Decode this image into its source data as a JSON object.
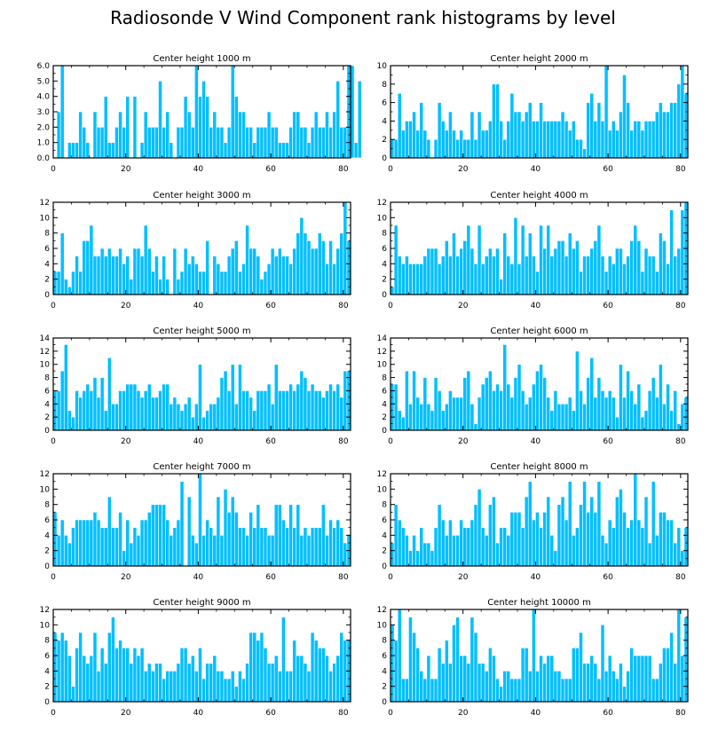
{
  "page_title": "Radiosonde V Wind Component rank histograms by level",
  "colors": {
    "bar": "#00BFFF",
    "frame": "#000000"
  },
  "chart_data": [
    {
      "type": "bar",
      "title": "Center height 1000 m",
      "xlim": [
        0,
        82
      ],
      "x_ticks": [
        0,
        20,
        40,
        60,
        80
      ],
      "ylim": [
        0,
        6
      ],
      "y_ticks": [
        0,
        1,
        2,
        3,
        4,
        5,
        6
      ],
      "y_tick_labels": [
        "0.0",
        "1.0",
        "2.0",
        "3.0",
        "4.0",
        "5.0",
        "6.0"
      ],
      "values": [
        0,
        3,
        6,
        0,
        1,
        1,
        1,
        3,
        2,
        1,
        0,
        3,
        2,
        2,
        4,
        1,
        1,
        2,
        3,
        2,
        4,
        0,
        4,
        0,
        1,
        3,
        2,
        2,
        2,
        5,
        2,
        3,
        1,
        0,
        2,
        2,
        4,
        3,
        2,
        6,
        4,
        5,
        4,
        2,
        3,
        2,
        2,
        1,
        2,
        6,
        4,
        3,
        3,
        2,
        2,
        1,
        2,
        2,
        2,
        3,
        2,
        2,
        1,
        1,
        1,
        2,
        3,
        3,
        2,
        2,
        1,
        2,
        3,
        2,
        2,
        3,
        2,
        3,
        5,
        2,
        2,
        6,
        6,
        1,
        5
      ]
    },
    {
      "type": "bar",
      "title": "Center height 2000 m",
      "xlim": [
        0,
        82
      ],
      "x_ticks": [
        0,
        20,
        40,
        60,
        80
      ],
      "ylim": [
        0,
        10
      ],
      "y_ticks": [
        0,
        2,
        4,
        6,
        8,
        10
      ],
      "y_tick_labels": [
        "0",
        "2",
        "4",
        "6",
        "8",
        "10"
      ],
      "values": [
        2,
        2,
        7,
        3,
        4,
        4,
        5,
        3,
        6,
        3,
        2,
        0,
        2,
        6,
        4,
        3,
        5,
        3,
        2,
        3,
        2,
        2,
        5,
        2,
        5,
        3,
        3,
        4,
        8,
        8,
        4,
        2,
        4,
        7,
        5,
        5,
        4,
        5,
        6,
        4,
        4,
        6,
        4,
        4,
        4,
        4,
        4,
        5,
        4,
        3,
        4,
        2,
        2,
        1,
        6,
        7,
        4,
        6,
        4,
        10,
        3,
        4,
        3,
        5,
        9,
        6,
        3,
        4,
        4,
        3,
        4,
        4,
        4,
        5,
        6,
        5,
        5,
        6,
        6,
        8,
        10,
        7
      ]
    },
    {
      "type": "bar",
      "title": "Center height 3000 m",
      "xlim": [
        0,
        82
      ],
      "x_ticks": [
        0,
        20,
        40,
        60,
        80
      ],
      "ylim": [
        0,
        12
      ],
      "y_ticks": [
        0,
        2,
        4,
        6,
        8,
        10,
        12
      ],
      "y_tick_labels": [
        "0",
        "2",
        "4",
        "6",
        "8",
        "10",
        "12"
      ],
      "values": [
        3,
        3,
        8,
        2,
        1,
        3,
        5,
        3,
        7,
        7,
        9,
        5,
        5,
        6,
        5,
        6,
        5,
        5,
        6,
        4,
        5,
        2,
        6,
        6,
        5,
        9,
        6,
        3,
        5,
        2,
        5,
        2,
        0,
        6,
        2,
        3,
        6,
        4,
        5,
        4,
        3,
        3,
        7,
        0,
        5,
        4,
        3,
        3,
        5,
        6,
        7,
        3,
        4,
        9,
        6,
        6,
        5,
        2,
        3,
        4,
        6,
        5,
        6,
        5,
        5,
        4,
        6,
        8,
        10,
        8,
        7,
        6,
        6,
        8,
        7,
        4,
        7,
        4,
        6,
        8,
        12,
        7
      ]
    },
    {
      "type": "bar",
      "title": "Center height 4000 m",
      "xlim": [
        0,
        82
      ],
      "x_ticks": [
        0,
        20,
        40,
        60,
        80
      ],
      "ylim": [
        0,
        12
      ],
      "y_ticks": [
        0,
        2,
        4,
        6,
        8,
        10,
        12
      ],
      "y_tick_labels": [
        "0",
        "2",
        "4",
        "6",
        "8",
        "10",
        "12"
      ],
      "values": [
        1,
        9,
        5,
        4,
        5,
        4,
        4,
        4,
        4,
        5,
        6,
        6,
        6,
        4,
        5,
        7,
        5,
        8,
        5,
        6,
        7,
        9,
        6,
        4,
        9,
        4,
        5,
        6,
        5,
        6,
        2,
        8,
        5,
        4,
        10,
        4,
        9,
        5,
        8,
        5,
        3,
        9,
        6,
        9,
        5,
        6,
        7,
        7,
        5,
        8,
        6,
        7,
        3,
        5,
        5,
        6,
        7,
        9,
        5,
        3,
        5,
        4,
        6,
        6,
        4,
        5,
        7,
        9,
        7,
        3,
        6,
        5,
        5,
        3,
        8,
        7,
        4,
        11,
        5,
        6,
        11,
        12
      ]
    },
    {
      "type": "bar",
      "title": "Center height 5000 m",
      "xlim": [
        0,
        82
      ],
      "x_ticks": [
        0,
        20,
        40,
        60,
        80
      ],
      "ylim": [
        0,
        14
      ],
      "y_ticks": [
        0,
        2,
        4,
        6,
        8,
        10,
        12,
        14
      ],
      "y_tick_labels": [
        "0",
        "2",
        "4",
        "6",
        "8",
        "10",
        "12",
        "14"
      ],
      "values": [
        6,
        6,
        9,
        13,
        3,
        2,
        6,
        5,
        6,
        7,
        6,
        8,
        5,
        8,
        3,
        11,
        4,
        4,
        6,
        6,
        7,
        7,
        7,
        6,
        5,
        6,
        7,
        5,
        5,
        6,
        7,
        7,
        4,
        5,
        4,
        3,
        4,
        5,
        2,
        4,
        10,
        2,
        3,
        4,
        4,
        5,
        8,
        9,
        6,
        10,
        4,
        10,
        6,
        6,
        5,
        3,
        6,
        6,
        6,
        7,
        4,
        10,
        6,
        6,
        6,
        7,
        6,
        7,
        9,
        8,
        6,
        7,
        6,
        6,
        5,
        6,
        7,
        6,
        7,
        5,
        9,
        9
      ]
    },
    {
      "type": "bar",
      "title": "Center height 6000 m",
      "xlim": [
        0,
        82
      ],
      "x_ticks": [
        0,
        20,
        40,
        60,
        80
      ],
      "ylim": [
        0,
        14
      ],
      "y_ticks": [
        0,
        2,
        4,
        6,
        8,
        10,
        12,
        14
      ],
      "y_tick_labels": [
        "0",
        "2",
        "4",
        "6",
        "8",
        "10",
        "12",
        "14"
      ],
      "values": [
        7,
        7,
        3,
        2,
        9,
        4,
        9,
        5,
        4,
        8,
        4,
        3,
        8,
        6,
        3,
        4,
        6,
        5,
        5,
        5,
        8,
        9,
        4,
        1,
        5,
        7,
        8,
        9,
        6,
        7,
        6,
        13,
        7,
        5,
        8,
        10,
        6,
        4,
        5,
        7,
        9,
        10,
        8,
        5,
        3,
        6,
        4,
        4,
        4,
        5,
        3,
        12,
        6,
        4,
        8,
        11,
        5,
        8,
        6,
        5,
        6,
        5,
        2,
        10,
        5,
        9,
        6,
        4,
        7,
        2,
        3,
        6,
        8,
        5,
        10,
        4,
        7,
        3,
        6,
        1,
        4,
        5
      ]
    },
    {
      "type": "bar",
      "title": "Center height 7000 m",
      "xlim": [
        0,
        82
      ],
      "x_ticks": [
        0,
        20,
        40,
        60,
        80
      ],
      "ylim": [
        0,
        12
      ],
      "y_ticks": [
        0,
        2,
        4,
        6,
        8,
        10,
        12
      ],
      "y_tick_labels": [
        "0",
        "2",
        "4",
        "6",
        "8",
        "10",
        "12"
      ],
      "values": [
        7,
        4,
        6,
        4,
        3,
        5,
        6,
        6,
        6,
        6,
        6,
        7,
        6,
        5,
        5,
        9,
        5,
        5,
        7,
        2,
        6,
        3,
        5,
        4,
        6,
        6,
        7,
        8,
        8,
        8,
        8,
        6,
        4,
        5,
        6,
        11,
        0,
        9,
        4,
        3,
        12,
        4,
        6,
        5,
        4,
        9,
        4,
        10,
        7,
        9,
        7,
        5,
        5,
        4,
        7,
        5,
        8,
        5,
        5,
        4,
        4,
        8,
        8,
        6,
        5,
        8,
        5,
        8,
        4,
        5,
        4,
        5,
        5,
        5,
        8,
        4,
        6,
        5,
        6,
        5,
        3,
        4
      ]
    },
    {
      "type": "bar",
      "title": "Center height 8000 m",
      "xlim": [
        0,
        82
      ],
      "x_ticks": [
        0,
        20,
        40,
        60,
        80
      ],
      "ylim": [
        0,
        12
      ],
      "y_ticks": [
        0,
        2,
        4,
        6,
        8,
        10,
        12
      ],
      "y_tick_labels": [
        "0",
        "2",
        "4",
        "6",
        "8",
        "10",
        "12"
      ],
      "values": [
        3,
        8,
        6,
        5,
        4,
        2,
        4,
        2,
        5,
        3,
        3,
        2,
        5,
        8,
        6,
        4,
        6,
        4,
        4,
        6,
        5,
        5,
        6,
        8,
        10,
        5,
        4,
        8,
        9,
        3,
        5,
        5,
        4,
        7,
        7,
        7,
        5,
        9,
        11,
        6,
        7,
        5,
        7,
        9,
        4,
        2,
        8,
        9,
        6,
        11,
        4,
        5,
        8,
        11,
        7,
        9,
        7,
        11,
        4,
        3,
        6,
        5,
        9,
        10,
        7,
        5,
        6,
        12,
        6,
        5,
        9,
        3,
        11,
        4,
        7,
        7,
        6,
        6,
        3,
        5,
        2,
        5
      ]
    },
    {
      "type": "bar",
      "title": "Center height 9000 m",
      "xlim": [
        0,
        82
      ],
      "x_ticks": [
        0,
        20,
        40,
        60,
        80
      ],
      "ylim": [
        0,
        12
      ],
      "y_ticks": [
        0,
        2,
        4,
        6,
        8,
        10,
        12
      ],
      "y_tick_labels": [
        "0",
        "2",
        "4",
        "6",
        "8",
        "10",
        "12"
      ],
      "values": [
        9,
        8,
        9,
        8,
        6,
        2,
        7,
        9,
        6,
        5,
        6,
        9,
        4,
        7,
        5,
        9,
        11,
        7,
        8,
        7,
        7,
        5,
        7,
        6,
        7,
        4,
        5,
        4,
        5,
        5,
        3,
        4,
        4,
        4,
        5,
        7,
        7,
        5,
        6,
        4,
        7,
        3,
        5,
        5,
        6,
        4,
        4,
        3,
        3,
        4,
        2,
        4,
        3,
        5,
        9,
        9,
        8,
        9,
        7,
        5,
        5,
        6,
        4,
        11,
        4,
        4,
        8,
        6,
        6,
        5,
        4,
        9,
        8,
        7,
        7,
        6,
        4,
        5,
        6,
        9,
        8,
        8
      ]
    },
    {
      "type": "bar",
      "title": "Center height 10000 m",
      "xlim": [
        0,
        82
      ],
      "x_ticks": [
        0,
        20,
        40,
        60,
        80
      ],
      "ylim": [
        0,
        12
      ],
      "y_ticks": [
        0,
        2,
        4,
        6,
        8,
        10,
        12
      ],
      "y_tick_labels": [
        "0",
        "2",
        "4",
        "6",
        "8",
        "10",
        "12"
      ],
      "values": [
        10,
        8,
        12,
        3,
        3,
        11,
        9,
        7,
        4,
        3,
        6,
        3,
        3,
        7,
        5,
        8,
        5,
        10,
        11,
        6,
        6,
        5,
        11,
        9,
        5,
        5,
        4,
        7,
        6,
        3,
        2,
        4,
        4,
        3,
        3,
        3,
        7,
        7,
        4,
        12,
        4,
        6,
        5,
        6,
        6,
        4,
        4,
        3,
        3,
        3,
        7,
        7,
        9,
        5,
        5,
        6,
        5,
        3,
        10,
        4,
        6,
        4,
        3,
        5,
        2,
        4,
        7,
        6,
        6,
        6,
        6,
        6,
        3,
        3,
        5,
        7,
        7,
        9,
        5,
        12,
        6,
        11
      ]
    }
  ]
}
